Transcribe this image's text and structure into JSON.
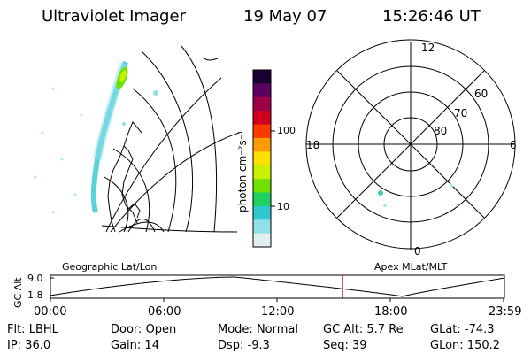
{
  "header": {
    "instrument": "Ultraviolet Imager",
    "date": "19 May 07",
    "time": "15:26:46 UT"
  },
  "colorbar": {
    "label": "photon cm⁻²s⁻¹",
    "ticks": [
      "100",
      "10"
    ],
    "colors": [
      "#1a0030",
      "#5a0060",
      "#a00048",
      "#d0001c",
      "#ff3a00",
      "#ff9a00",
      "#ffe000",
      "#c8f000",
      "#70e000",
      "#20d060",
      "#30c8d0",
      "#90e0e8",
      "#e0f0f0"
    ]
  },
  "polar": {
    "mlt_labels": [
      "12",
      "18",
      "6",
      "0"
    ],
    "lat_labels": [
      "60",
      "70",
      "80"
    ]
  },
  "panel_labels": {
    "left": "Geographic Lat/Lon",
    "right": "Apex MLat/MLT"
  },
  "altitude_plot": {
    "ylabel": "GC Alt",
    "yticks": [
      "9.0",
      "1.8"
    ],
    "xticks": [
      "00:00",
      "06:00",
      "12:00",
      "18:00",
      "23:59"
    ],
    "marker_time": "15:26:46",
    "line_color": "#000000",
    "marker_color": "#cc0000"
  },
  "status": [
    [
      {
        "label": "Flt:",
        "value": "LBHL"
      },
      {
        "label": "Door:",
        "value": "Open"
      },
      {
        "label": "Mode:",
        "value": "Normal"
      },
      {
        "label": "GC Alt:",
        "value": "5.7 Re"
      },
      {
        "label": "GLat:",
        "value": "-74.3"
      }
    ],
    [
      {
        "label": "IP:",
        "value": "36.0"
      },
      {
        "label": "Gain:",
        "value": "14"
      },
      {
        "label": "Dsp:",
        "value": "-9.3"
      },
      {
        "label": "Seq:",
        "value": "39"
      },
      {
        "label": "GLon:",
        "value": "150.2"
      }
    ]
  ]
}
